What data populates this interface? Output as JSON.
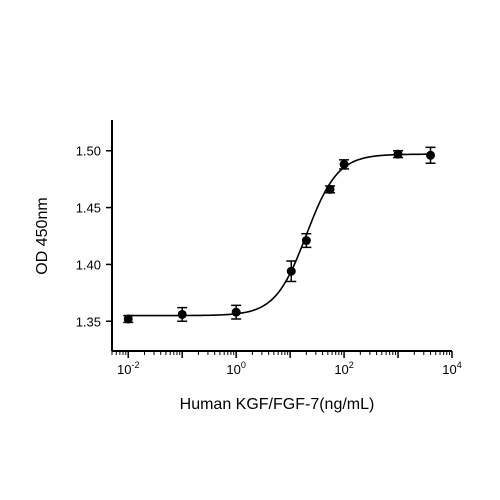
{
  "chart_data": {
    "type": "scatter",
    "title": "",
    "xlabel": "Human KGF/FGF-7(ng/mL)",
    "ylabel": "OD 450nm",
    "x_scale": "log10",
    "xlim": [
      0.005,
      10000
    ],
    "ylim": [
      1.33,
      1.52
    ],
    "grid": false,
    "legend": "none",
    "color": "#000000",
    "x_ticks": [
      {
        "value": 0.01,
        "base": "10",
        "exp": "-2"
      },
      {
        "value": 1,
        "base": "10",
        "exp": "0"
      },
      {
        "value": 100,
        "base": "10",
        "exp": "2"
      },
      {
        "value": 10000,
        "base": "10",
        "exp": "4"
      }
    ],
    "y_ticks": [
      {
        "value": 1.35,
        "label": "1.35"
      },
      {
        "value": 1.4,
        "label": "1.40"
      },
      {
        "value": 1.45,
        "label": "1.45"
      },
      {
        "value": 1.5,
        "label": "1.50"
      }
    ],
    "series": [
      {
        "points": [
          {
            "x": 0.01,
            "y": 1.352,
            "err": 0.003
          },
          {
            "x": 0.1,
            "y": 1.356,
            "err": 0.006
          },
          {
            "x": 1.0,
            "y": 1.358,
            "err": 0.006
          },
          {
            "x": 10.5,
            "y": 1.394,
            "err": 0.009
          },
          {
            "x": 20.0,
            "y": 1.421,
            "err": 0.006
          },
          {
            "x": 55.0,
            "y": 1.466,
            "err": 0.003
          },
          {
            "x": 100.0,
            "y": 1.488,
            "err": 0.004
          },
          {
            "x": 1000.0,
            "y": 1.497,
            "err": 0.003
          },
          {
            "x": 4000.0,
            "y": 1.496,
            "err": 0.007
          }
        ]
      }
    ],
    "fit_curve": {
      "model": "4PL",
      "bottom": 1.355,
      "top": 1.497,
      "ec50": 20.0,
      "hill": 1.5
    }
  }
}
